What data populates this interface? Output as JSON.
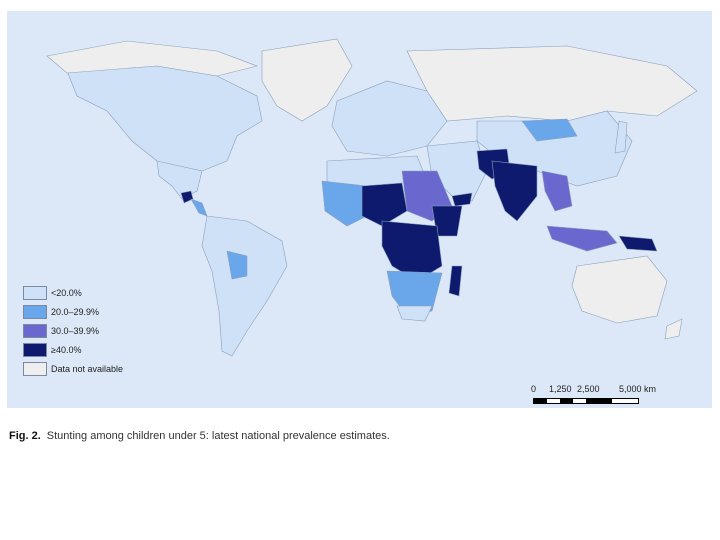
{
  "colors": {
    "ocean": "#dce8f8",
    "lt20": "#cfe1f7",
    "r20_29": "#6aa7ea",
    "r30_39": "#6a68cf",
    "gte40": "#0d1a6e",
    "na": "#eeeeee",
    "border": "#8aa0bb"
  },
  "legend": {
    "items": [
      {
        "label": "<20.0%",
        "color": "#cfe1f7"
      },
      {
        "label": "20.0–29.9%",
        "color": "#6aa7ea"
      },
      {
        "label": "30.0–39.9%",
        "color": "#6a68cf"
      },
      {
        "label": "≥40.0%",
        "color": "#0d1a6e"
      },
      {
        "label": "Data not available",
        "color": "#eeeeee"
      }
    ]
  },
  "scale": {
    "ticks": [
      "0",
      "1,250",
      "2,500",
      "5,000 km"
    ]
  },
  "caption": {
    "fig_label": "Fig. 2.",
    "text": "Stunting among children under 5: latest national prevalence estimates."
  }
}
